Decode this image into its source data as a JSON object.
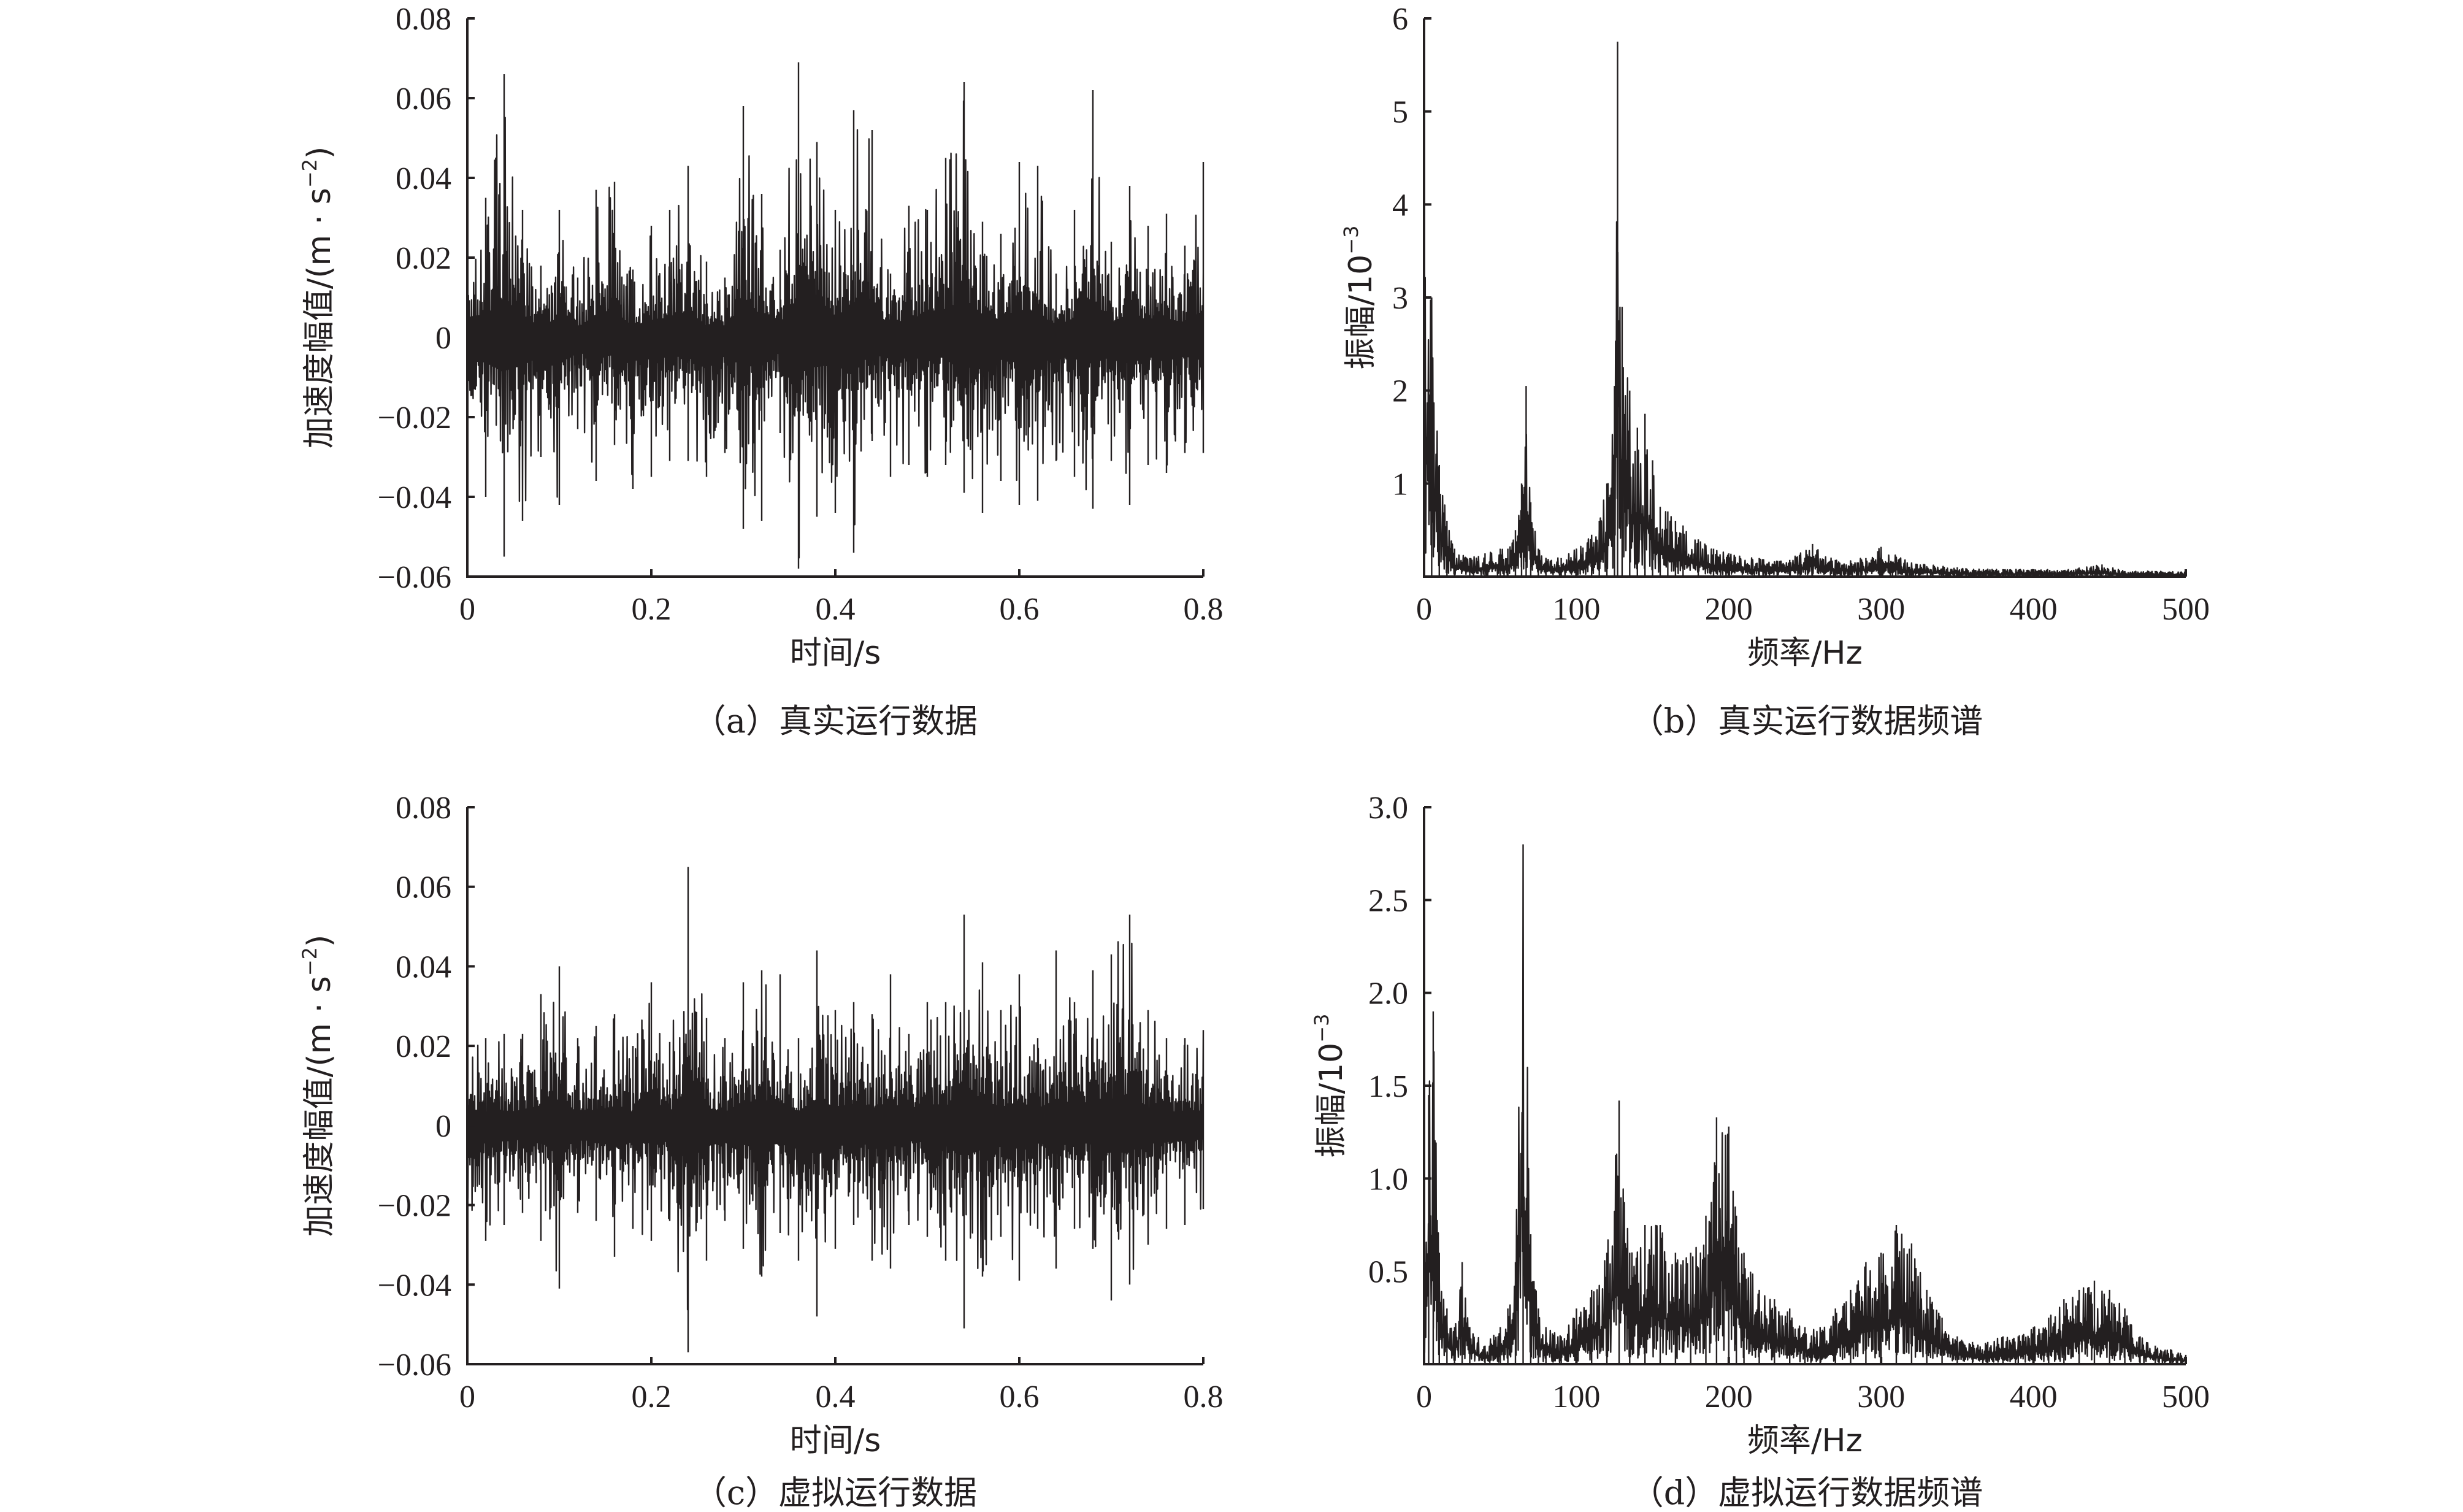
{
  "chart_data": [
    {
      "id": "a",
      "type": "line",
      "caption": "（a）真实运行数据",
      "xlabel": "时间/s",
      "ylabel": "加速度幅值/(m · s",
      "ylabel_sup": "−2",
      "ylabel_end": ")",
      "xlim": [
        0,
        0.8
      ],
      "ylim": [
        -0.06,
        0.08
      ],
      "xticks": [
        0,
        0.2,
        0.4,
        0.6,
        0.8
      ],
      "xtick_labels": [
        "0",
        "0.2",
        "0.4",
        "0.6",
        "0.8"
      ],
      "yticks": [
        -0.06,
        -0.04,
        -0.02,
        0,
        0.02,
        0.04,
        0.06,
        0.08
      ],
      "ytick_labels": [
        "−0.06",
        "−0.04",
        "−0.02",
        "0",
        "0.02",
        "0.04",
        "0.06",
        "0.08"
      ],
      "envelope": {
        "x": [
          0,
          0.02,
          0.04,
          0.06,
          0.08,
          0.1,
          0.12,
          0.14,
          0.16,
          0.18,
          0.2,
          0.22,
          0.24,
          0.26,
          0.28,
          0.3,
          0.32,
          0.34,
          0.36,
          0.38,
          0.4,
          0.42,
          0.44,
          0.46,
          0.48,
          0.5,
          0.52,
          0.54,
          0.56,
          0.58,
          0.6,
          0.62,
          0.64,
          0.66,
          0.68,
          0.7,
          0.72,
          0.74,
          0.76,
          0.78,
          0.8
        ],
        "max": [
          0.033,
          0.035,
          0.066,
          0.032,
          0.018,
          0.032,
          0.015,
          0.037,
          0.039,
          0.017,
          0.028,
          0.032,
          0.043,
          0.019,
          0.015,
          0.058,
          0.036,
          0.022,
          0.069,
          0.049,
          0.032,
          0.057,
          0.052,
          0.016,
          0.033,
          0.032,
          0.045,
          0.064,
          0.029,
          0.026,
          0.044,
          0.043,
          0.016,
          0.032,
          0.062,
          0.024,
          0.038,
          0.028,
          0.031,
          0.023,
          0.044
        ],
        "min": [
          -0.039,
          -0.04,
          -0.055,
          -0.046,
          -0.03,
          -0.042,
          -0.023,
          -0.036,
          -0.027,
          -0.038,
          -0.035,
          -0.031,
          -0.031,
          -0.035,
          -0.029,
          -0.048,
          -0.046,
          -0.024,
          -0.058,
          -0.045,
          -0.044,
          -0.054,
          -0.026,
          -0.035,
          -0.032,
          -0.035,
          -0.032,
          -0.039,
          -0.044,
          -0.036,
          -0.042,
          -0.041,
          -0.031,
          -0.035,
          -0.043,
          -0.031,
          -0.042,
          -0.032,
          -0.034,
          -0.029,
          -0.029
        ]
      }
    },
    {
      "id": "b",
      "type": "line",
      "caption": "（b）真实运行数据频谱",
      "xlabel": "频率/Hz",
      "ylabel": "振幅/10",
      "ylabel_sup": "−3",
      "ylabel_end": "",
      "xlim": [
        0,
        500
      ],
      "ylim": [
        0,
        6
      ],
      "xticks": [
        0,
        100,
        200,
        300,
        400,
        500
      ],
      "xtick_labels": [
        "0",
        "100",
        "200",
        "300",
        "400",
        "500"
      ],
      "yticks": [
        1,
        2,
        3,
        4,
        5,
        6
      ],
      "ytick_labels": [
        "1",
        "2",
        "3",
        "4",
        "5",
        "6"
      ],
      "y_zero_label": "0",
      "envelope": {
        "x": [
          0,
          5,
          10,
          15,
          20,
          30,
          40,
          50,
          55,
          60,
          64,
          67,
          70,
          75,
          80,
          90,
          100,
          110,
          115,
          120,
          125,
          127,
          130,
          135,
          140,
          145,
          150,
          155,
          160,
          165,
          170,
          180,
          190,
          200,
          220,
          240,
          255,
          270,
          290,
          300,
          320,
          350,
          380,
          400,
          420,
          445,
          460,
          480,
          500
        ],
        "y": [
          4.5,
          3.0,
          1.2,
          0.6,
          0.3,
          0.2,
          0.25,
          0.3,
          0.3,
          0.5,
          1.0,
          2.05,
          0.8,
          0.3,
          0.2,
          0.2,
          0.3,
          0.45,
          0.6,
          1.0,
          2.05,
          5.75,
          2.9,
          2.0,
          1.6,
          1.75,
          1.25,
          0.75,
          0.7,
          0.6,
          0.55,
          0.4,
          0.3,
          0.25,
          0.2,
          0.18,
          0.35,
          0.18,
          0.2,
          0.32,
          0.15,
          0.1,
          0.08,
          0.08,
          0.07,
          0.13,
          0.06,
          0.06,
          0.05
        ]
      }
    },
    {
      "id": "c",
      "type": "line",
      "caption": "（c）虚拟运行数据",
      "xlabel": "时间/s",
      "ylabel": "加速度幅值/(m · s",
      "ylabel_sup": "−2",
      "ylabel_end": ")",
      "xlim": [
        0,
        0.8
      ],
      "ylim": [
        -0.06,
        0.08
      ],
      "xticks": [
        0,
        0.2,
        0.4,
        0.6,
        0.8
      ],
      "xtick_labels": [
        "0",
        "0.2",
        "0.4",
        "0.6",
        "0.8"
      ],
      "yticks": [
        -0.06,
        -0.04,
        -0.02,
        0,
        0.02,
        0.04,
        0.06,
        0.08
      ],
      "ytick_labels": [
        "−0.06",
        "−0.04",
        "−0.02",
        "0",
        "0.02",
        "0.04",
        "0.06",
        "0.08"
      ],
      "envelope": {
        "x": [
          0,
          0.02,
          0.04,
          0.06,
          0.08,
          0.1,
          0.12,
          0.14,
          0.16,
          0.18,
          0.2,
          0.22,
          0.24,
          0.26,
          0.28,
          0.3,
          0.32,
          0.34,
          0.36,
          0.38,
          0.4,
          0.42,
          0.44,
          0.46,
          0.48,
          0.5,
          0.52,
          0.54,
          0.56,
          0.58,
          0.6,
          0.62,
          0.64,
          0.66,
          0.68,
          0.7,
          0.72,
          0.74,
          0.76,
          0.78,
          0.8
        ],
        "max": [
          0.025,
          0.022,
          0.023,
          0.023,
          0.033,
          0.04,
          0.022,
          0.025,
          0.028,
          0.02,
          0.036,
          0.021,
          0.065,
          0.027,
          0.022,
          0.036,
          0.039,
          0.038,
          0.022,
          0.044,
          0.029,
          0.031,
          0.028,
          0.038,
          0.023,
          0.031,
          0.031,
          0.053,
          0.041,
          0.029,
          0.038,
          0.022,
          0.044,
          0.031,
          0.039,
          0.043,
          0.053,
          0.029,
          0.022,
          0.022,
          0.024
        ],
        "min": [
          -0.027,
          -0.029,
          -0.025,
          -0.022,
          -0.029,
          -0.041,
          -0.022,
          -0.024,
          -0.033,
          -0.026,
          -0.029,
          -0.024,
          -0.057,
          -0.034,
          -0.024,
          -0.031,
          -0.038,
          -0.027,
          -0.034,
          -0.048,
          -0.031,
          -0.025,
          -0.034,
          -0.036,
          -0.025,
          -0.028,
          -0.034,
          -0.051,
          -0.038,
          -0.028,
          -0.039,
          -0.026,
          -0.036,
          -0.026,
          -0.031,
          -0.044,
          -0.04,
          -0.03,
          -0.026,
          -0.025,
          -0.021
        ]
      }
    },
    {
      "id": "d",
      "type": "line",
      "caption": "（d）虚拟运行数据频谱",
      "xlabel": "频率/Hz",
      "ylabel": "振幅/10",
      "ylabel_sup": "−3",
      "ylabel_end": "",
      "xlim": [
        0,
        500
      ],
      "ylim": [
        0,
        3
      ],
      "xticks": [
        0,
        100,
        200,
        300,
        400,
        500
      ],
      "xtick_labels": [
        "0",
        "100",
        "200",
        "300",
        "400",
        "500"
      ],
      "yticks": [
        0.5,
        1.0,
        1.5,
        2.0,
        2.5,
        3.0
      ],
      "ytick_labels": [
        "0.5",
        "1.0",
        "1.5",
        "2.0",
        "2.5",
        "3.0"
      ],
      "y_zero_label": "0",
      "envelope": {
        "x": [
          0,
          3,
          6,
          10,
          15,
          20,
          25,
          30,
          40,
          50,
          55,
          60,
          65,
          70,
          75,
          80,
          90,
          100,
          110,
          120,
          128,
          135,
          145,
          155,
          165,
          175,
          185,
          192,
          200,
          205,
          210,
          220,
          230,
          240,
          250,
          260,
          270,
          280,
          290,
          300,
          310,
          320,
          330,
          340,
          350,
          360,
          370,
          380,
          390,
          400,
          410,
          420,
          430,
          440,
          450,
          460,
          470,
          480,
          490,
          500
        ],
        "y": [
          0.3,
          1.45,
          1.9,
          0.6,
          0.3,
          0.2,
          0.55,
          0.2,
          0.1,
          0.2,
          0.3,
          0.55,
          2.8,
          0.7,
          0.3,
          0.2,
          0.15,
          0.3,
          0.4,
          0.6,
          1.42,
          0.6,
          0.75,
          0.75,
          0.6,
          0.6,
          0.8,
          1.33,
          1.28,
          0.8,
          0.6,
          0.4,
          0.35,
          0.3,
          0.2,
          0.2,
          0.3,
          0.4,
          0.55,
          0.6,
          0.75,
          0.65,
          0.4,
          0.25,
          0.15,
          0.12,
          0.12,
          0.15,
          0.15,
          0.2,
          0.25,
          0.35,
          0.4,
          0.45,
          0.4,
          0.3,
          0.15,
          0.1,
          0.08,
          0.05
        ]
      }
    }
  ]
}
